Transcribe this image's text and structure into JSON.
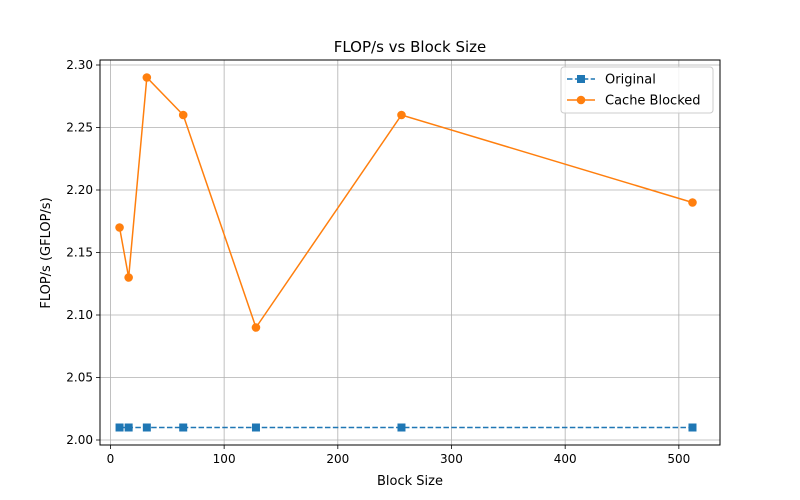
{
  "chart_data": {
    "type": "line",
    "title": "FLOP/s vs Block Size",
    "xlabel": "Block Size",
    "ylabel": "FLOP/s (GFLOP/s)",
    "xlim": [
      -9.2,
      536.2
    ],
    "ylim": [
      1.996,
      2.304
    ],
    "xticks": [
      0,
      100,
      200,
      300,
      400,
      500
    ],
    "xtick_labels": [
      "0",
      "100",
      "200",
      "300",
      "400",
      "500"
    ],
    "yticks": [
      2.0,
      2.05,
      2.1,
      2.15,
      2.2,
      2.25,
      2.3
    ],
    "ytick_labels": [
      "2.00",
      "2.05",
      "2.10",
      "2.15",
      "2.20",
      "2.25",
      "2.30"
    ],
    "grid": true,
    "legend_position": "top-right",
    "x": [
      8,
      16,
      32,
      64,
      128,
      256,
      512
    ],
    "series": [
      {
        "name": "Original",
        "values": [
          2.01,
          2.01,
          2.01,
          2.01,
          2.01,
          2.01,
          2.01
        ],
        "color": "#1f77b4",
        "line": "dashed",
        "marker": "square"
      },
      {
        "name": "Cache Blocked",
        "values": [
          2.17,
          2.13,
          2.29,
          2.26,
          2.09,
          2.26,
          2.19
        ],
        "color": "#ff7f0e",
        "line": "solid",
        "marker": "circle"
      }
    ]
  }
}
